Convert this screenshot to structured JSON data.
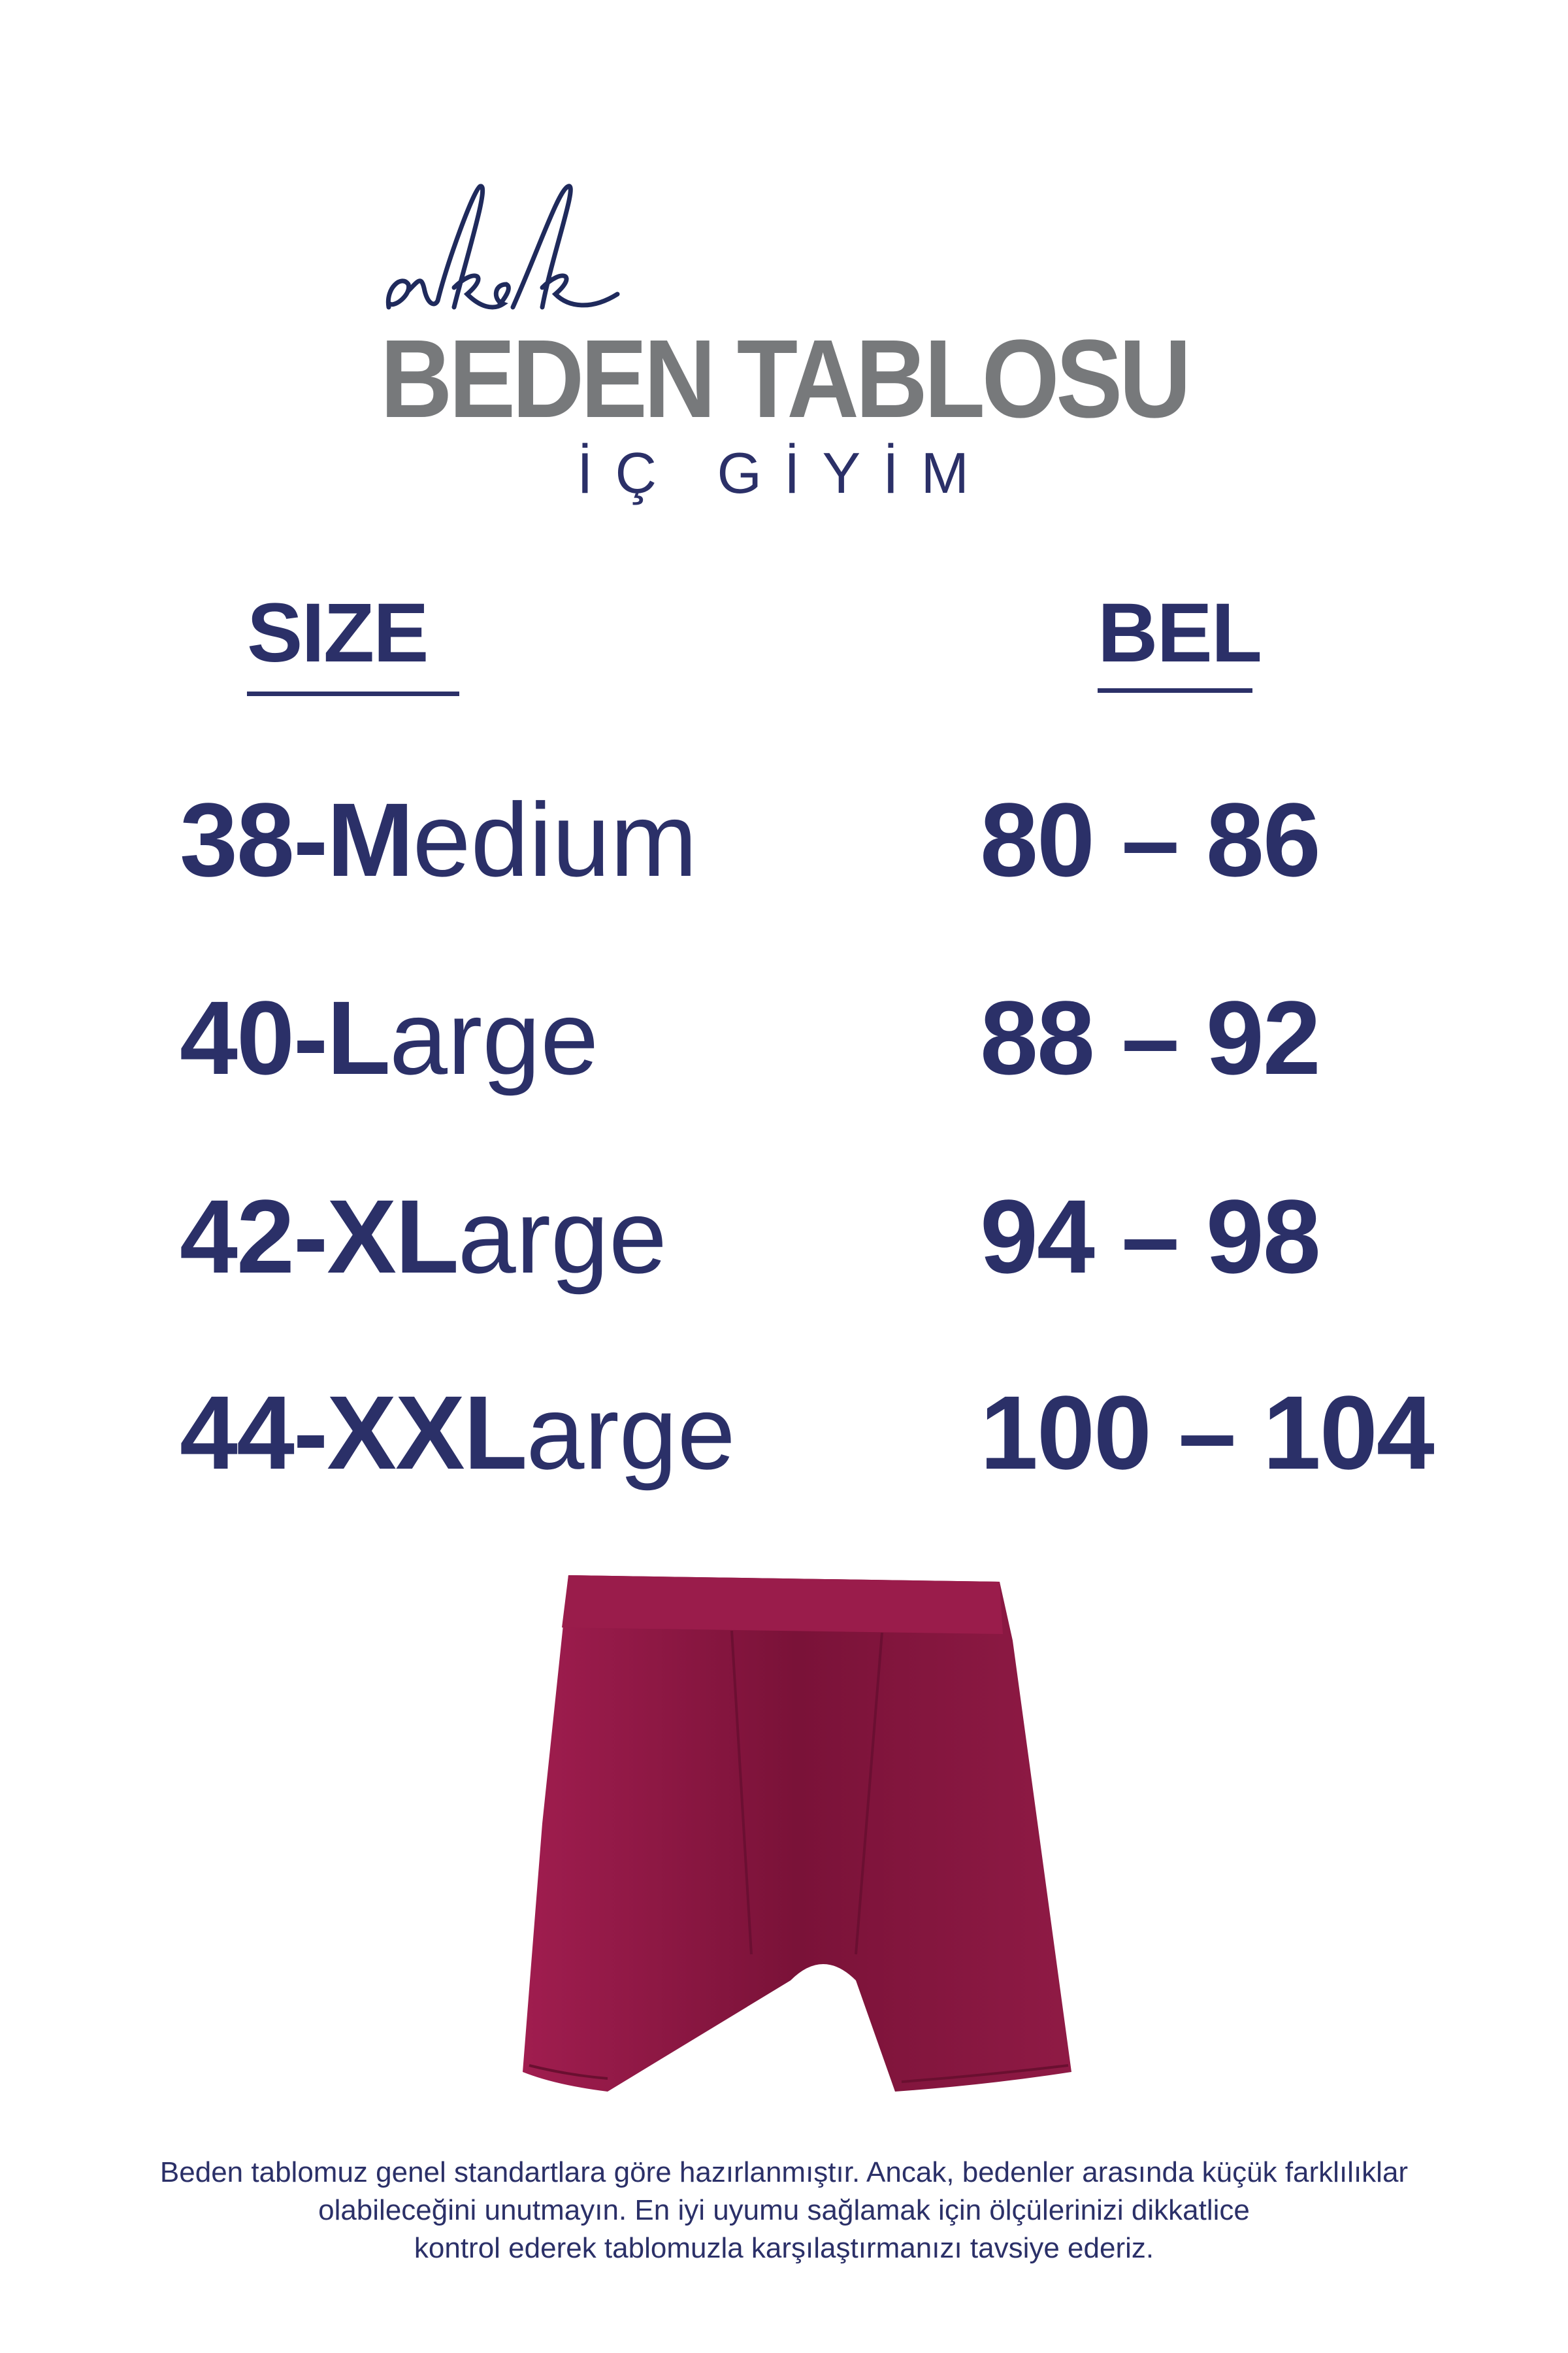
{
  "header": {
    "script_word": "erkek",
    "title": "BEDEN TABLOSU",
    "subtitle": "İÇ GİYİM"
  },
  "table": {
    "headers": {
      "size": "SIZE",
      "waist": "BEL"
    },
    "rows": [
      {
        "num": "38-",
        "bold": "M",
        "light": "edium",
        "waist": "80 – 86"
      },
      {
        "num": "40-",
        "bold": "L",
        "light": "arge",
        "waist": "88 – 92"
      },
      {
        "num": "42-",
        "bold": "XL",
        "light": "arge",
        "waist": "94 – 98"
      },
      {
        "num": "44-",
        "bold": "XXL",
        "light": "arge",
        "waist": "100 – 104"
      }
    ]
  },
  "product_image": {
    "icon": "boxer-briefs",
    "color": "#8a1a45"
  },
  "note": {
    "lines": [
      "Beden tablomuz genel standartlara göre hazırlanmıştır. Ancak, bedenler arasında küçük farklılıklar",
      "olabileceğini unutmayın. En iyi uyumu sağlamak için ölçülerinizi dikkatlice",
      "kontrol ederek tablomuzla karşılaştırmanızı tavsiye ederiz."
    ]
  },
  "colors": {
    "navy": "#2b3068",
    "gray": "#77797b"
  }
}
